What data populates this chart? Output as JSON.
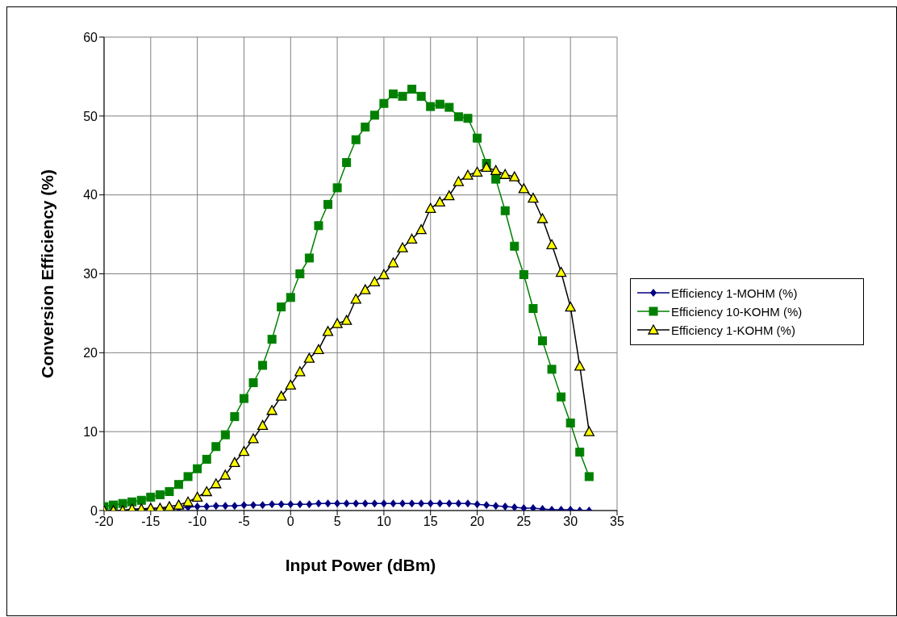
{
  "chart_data": {
    "type": "line",
    "xlabel": "Input Power (dBm)",
    "ylabel": "Conversion Efficiency (%)",
    "x": [
      -20,
      -19,
      -18,
      -17,
      -16,
      -15,
      -14,
      -13,
      -12,
      -11,
      -10,
      -9,
      -8,
      -7,
      -6,
      -5,
      -4,
      -3,
      -2,
      -1,
      0,
      1,
      2,
      3,
      4,
      5,
      6,
      7,
      8,
      9,
      10,
      11,
      12,
      13,
      14,
      15,
      16,
      17,
      18,
      19,
      20,
      21,
      22,
      23,
      24,
      25,
      26,
      27,
      28,
      29,
      30,
      31,
      32
    ],
    "series": [
      {
        "name": "Efficiency 1-MOHM (%)",
        "color": "#000080",
        "marker": "diamond",
        "values": [
          null,
          null,
          null,
          0.1,
          0.1,
          0.2,
          0.2,
          0.3,
          0.3,
          0.4,
          0.5,
          0.5,
          0.6,
          0.6,
          0.6,
          0.7,
          0.7,
          0.7,
          0.8,
          0.8,
          0.8,
          0.8,
          0.8,
          0.9,
          0.9,
          0.9,
          0.9,
          0.9,
          0.9,
          0.9,
          0.9,
          0.9,
          0.9,
          0.9,
          0.9,
          0.9,
          0.9,
          0.9,
          0.9,
          0.9,
          0.8,
          0.7,
          0.6,
          0.5,
          0.4,
          0.3,
          0.3,
          0.2,
          0.1,
          0.1,
          0.1,
          0,
          0
        ]
      },
      {
        "name": "Efficiency 10-KOHM (%)",
        "color": "#008000",
        "marker": "square",
        "values": [
          0.5,
          0.7,
          0.9,
          1.1,
          1.3,
          1.7,
          2.0,
          2.4,
          3.3,
          4.3,
          5.3,
          6.5,
          8.1,
          9.6,
          11.9,
          14.2,
          16.2,
          18.4,
          21.7,
          25.8,
          27.0,
          30.0,
          32.0,
          36.1,
          38.8,
          40.9,
          44.1,
          47.0,
          48.6,
          50.1,
          51.6,
          52.8,
          52.5,
          53.4,
          52.5,
          51.2,
          51.5,
          51.1,
          49.9,
          49.7,
          47.2,
          44.0,
          42.0,
          38.0,
          33.5,
          29.9,
          25.6,
          21.5,
          17.9,
          14.4,
          11.1,
          7.4,
          4.3
        ]
      },
      {
        "name": "Efficiency 1-KOHM (%)",
        "color": "#000000",
        "marker": "triangle",
        "values": [
          0,
          0,
          0,
          0.2,
          0.2,
          0.3,
          0.3,
          0.5,
          0.7,
          1.1,
          1.7,
          2.4,
          3.4,
          4.5,
          6.1,
          7.5,
          9.1,
          10.8,
          12.7,
          14.5,
          15.9,
          17.6,
          19.3,
          20.4,
          22.7,
          23.7,
          24.1,
          26.8,
          28.0,
          29.0,
          29.9,
          31.4,
          33.3,
          34.4,
          35.6,
          38.3,
          39.1,
          39.9,
          41.7,
          42.5,
          42.9,
          43.5,
          43.1,
          42.6,
          42.3,
          40.8,
          39.6,
          37.0,
          33.7,
          30.2,
          25.8,
          18.3,
          10.0
        ]
      }
    ],
    "xlim": [
      -20,
      35
    ],
    "xticks": [
      -20,
      -15,
      -10,
      -5,
      0,
      5,
      10,
      15,
      20,
      25,
      30,
      35
    ],
    "ylim": [
      0,
      60
    ],
    "yticks": [
      0,
      10,
      20,
      30,
      40,
      50,
      60
    ],
    "grid": true,
    "legend": "right"
  }
}
